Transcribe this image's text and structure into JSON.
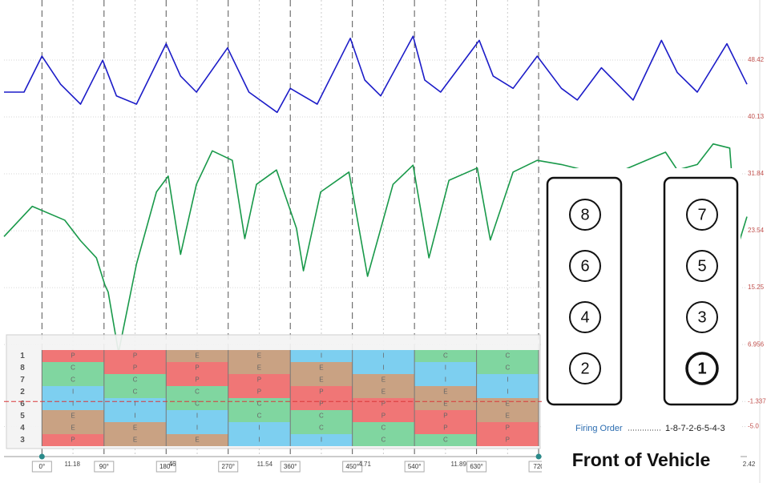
{
  "scope": {
    "xlim": [
      -55,
      1022
    ],
    "ylim": [
      -9.37,
      57.18
    ],
    "yticks": [
      48.42,
      40.13,
      31.84,
      23.54,
      15.25,
      6.956,
      -1.337,
      {
        "value": -5,
        "label": "-5.0"
      }
    ],
    "xticks": [
      {
        "value": 0,
        "label": "0°"
      },
      {
        "value": 90,
        "label": "90°"
      },
      {
        "value": 180,
        "label": "180°"
      },
      {
        "value": 270,
        "label": "270°"
      },
      {
        "value": 360,
        "label": "360°"
      },
      {
        "value": 450,
        "label": "450°"
      },
      {
        "value": 540,
        "label": "540°"
      },
      {
        "value": 630,
        "label": "630°"
      },
      {
        "value": 720,
        "label": "720"
      }
    ],
    "x_readouts": [
      {
        "value": 44,
        "label": "11.18"
      },
      {
        "value": 189,
        "label": "46"
      },
      {
        "value": 323,
        "label": "11.54"
      },
      {
        "value": 468,
        "label": "4.71"
      },
      {
        "value": 604,
        "label": "11.89"
      },
      {
        "value": 1025,
        "label": "2.42"
      }
    ],
    "traces": [
      {
        "color": "#1c1cc8",
        "x": [
          -55,
          -26,
          0,
          27,
          56,
          88,
          108,
          137,
          180,
          201,
          224,
          269,
          300,
          341,
          360,
          399,
          447,
          468,
          491,
          538,
          555,
          578,
          634,
          654,
          683,
          718,
          753,
          776,
          811,
          857,
          898,
          921,
          950,
          993,
          1022
        ],
        "values": [
          43.75,
          43.75,
          49.0,
          44.9,
          42.0,
          48.4,
          43.2,
          42.0,
          50.8,
          46.1,
          43.75,
          50.2,
          43.75,
          40.8,
          44.3,
          42.0,
          51.6,
          45.5,
          43.2,
          51.9,
          45.5,
          43.75,
          51.3,
          46.1,
          44.3,
          49.0,
          44.3,
          42.6,
          47.3,
          42.6,
          51.3,
          46.6,
          43.75,
          50.8,
          44.9
        ]
      },
      {
        "color": "#19994a",
        "x": [
          -55,
          -14,
          33,
          56,
          79,
          91,
          96,
          111,
          137,
          166,
          183,
          201,
          224,
          247,
          276,
          294,
          311,
          340,
          369,
          379,
          404,
          445,
          472,
          509,
          538,
          561,
          590,
          631,
          650,
          683,
          718,
          753,
          822,
          904,
          921,
          950,
          973,
          997,
          1008,
          1022
        ],
        "values": [
          22.7,
          27.1,
          25.1,
          22.1,
          19.6,
          15.7,
          14.6,
          5.8,
          18.7,
          29.2,
          31.5,
          20.1,
          30.3,
          35.2,
          33.8,
          22.4,
          30.3,
          32.4,
          23.9,
          17.7,
          29.2,
          32.1,
          16.9,
          30.3,
          33.1,
          19.6,
          30.9,
          32.7,
          22.2,
          32.1,
          33.8,
          33.2,
          31.5,
          35.0,
          32.4,
          33.2,
          36.2,
          35.6,
          21.0,
          25.6
        ]
      }
    ]
  },
  "firing_table": {
    "rows": [
      "1",
      "8",
      "7",
      "2",
      "6",
      "5",
      "4",
      "3"
    ],
    "cells": [
      [
        "P",
        "P",
        "E",
        "E",
        "I",
        "I",
        "C",
        "C"
      ],
      [
        "C",
        "P",
        "P",
        "E",
        "E",
        "I",
        "I",
        "C"
      ],
      [
        "C",
        "C",
        "P",
        "P",
        "E",
        "E",
        "I",
        "I"
      ],
      [
        "I",
        "C",
        "C",
        "P",
        "P",
        "E",
        "E",
        "I"
      ],
      [
        "I",
        "I",
        "C",
        "C",
        "P",
        "P",
        "E",
        "E"
      ],
      [
        "E",
        "I",
        "I",
        "C",
        "C",
        "P",
        "P",
        "E"
      ],
      [
        "E",
        "E",
        "I",
        "I",
        "C",
        "C",
        "P",
        "P"
      ],
      [
        "P",
        "E",
        "E",
        "I",
        "I",
        "C",
        "C",
        "P"
      ]
    ],
    "colors": {
      "P": "#f07676",
      "C": "#80d6a0",
      "I": "#7dcff0",
      "E": "#c9a283"
    }
  },
  "engine_diagram": {
    "left_bank": [
      "8",
      "6",
      "4",
      "2"
    ],
    "right_bank": [
      "7",
      "5",
      "3",
      "1"
    ],
    "firing_order_label": "Firing Order",
    "firing_order": "1-8-7-2-6-5-4-3",
    "caption": "Front of Vehicle"
  }
}
